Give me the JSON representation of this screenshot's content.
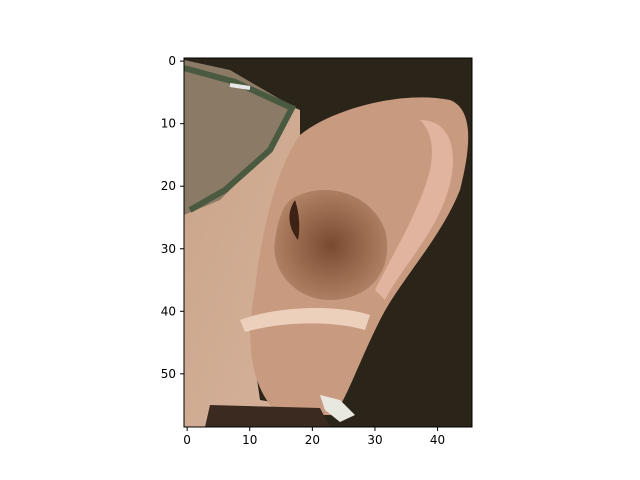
{
  "chart_data": {
    "type": "image",
    "xlim": [
      -0.5,
      45.5
    ],
    "ylim": [
      58.5,
      -0.5
    ],
    "xticks": [
      0,
      10,
      20,
      30,
      40
    ],
    "yticks": [
      0,
      10,
      20,
      30,
      40,
      50
    ]
  }
}
